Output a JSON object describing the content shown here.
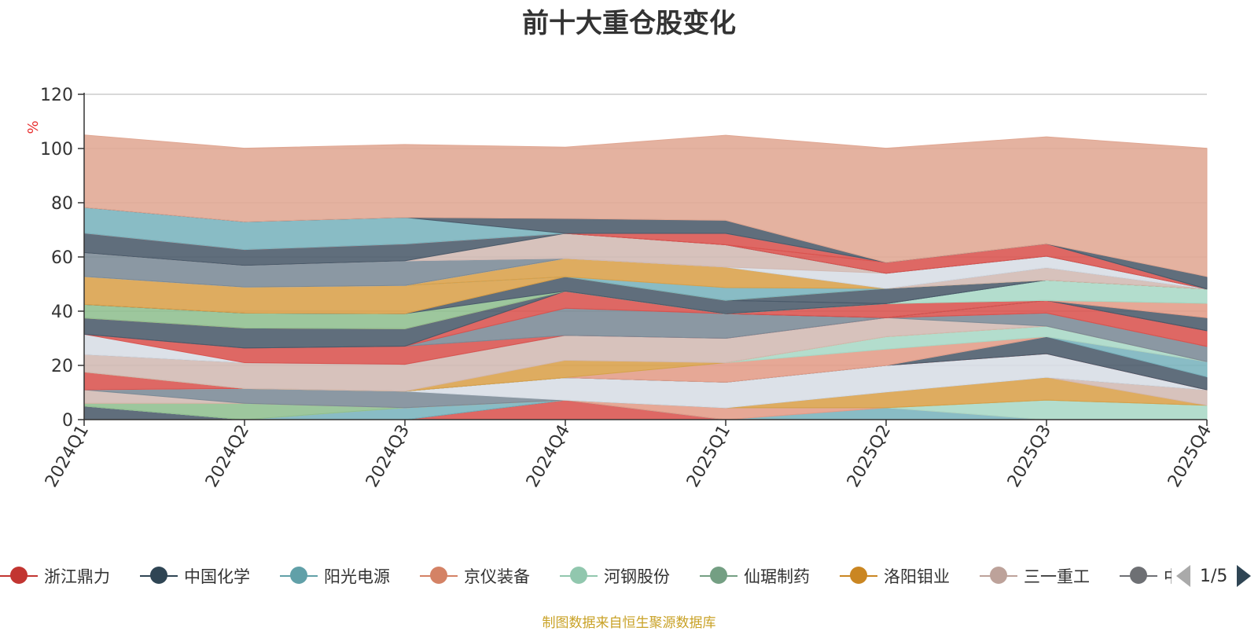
{
  "chart_data": {
    "type": "area",
    "stacked": true,
    "title": "前十大重仓股变化",
    "ylabel": "%",
    "ylim": [
      0,
      120
    ],
    "yticks": [
      0,
      20,
      40,
      60,
      80,
      100,
      120
    ],
    "categories": [
      "2024Q1",
      "2024Q2",
      "2024Q3",
      "2024Q4",
      "2025Q1",
      "2025Q2",
      "2025Q3",
      "2025Q4"
    ],
    "series": [
      {
        "values": [
          0,
          0,
          0,
          7.2,
          0,
          0,
          0,
          0
        ],
        "color": "#d9534f"
      },
      {
        "values": [
          5.0,
          0,
          0,
          0,
          0,
          0,
          0,
          0
        ],
        "color": "#4a5a6a"
      },
      {
        "values": [
          0,
          0,
          4.4,
          0,
          0,
          4.4,
          0,
          0
        ],
        "color": "#79b3bd"
      },
      {
        "values": [
          0,
          0,
          0,
          0,
          4.4,
          0,
          0,
          0
        ],
        "color": "#e39c88"
      },
      {
        "values": [
          0,
          0,
          0,
          0,
          0,
          0,
          7.2,
          5.3
        ],
        "color": "#a8d8c6"
      },
      {
        "values": [
          1.0,
          6.0,
          0,
          0,
          0,
          0,
          0,
          0
        ],
        "color": "#8fbf8f"
      },
      {
        "values": [
          0,
          0,
          0,
          0,
          0,
          5.8,
          8.4,
          0
        ],
        "color": "#d9a04a"
      },
      {
        "values": [
          5.0,
          0,
          0,
          0,
          0,
          0,
          0,
          5.7
        ],
        "color": "#d2b9b3"
      },
      {
        "values": [
          0,
          5.5,
          6.1,
          0,
          0,
          0,
          0,
          0
        ],
        "color": "#7b8a96"
      },
      {
        "values": [
          0,
          0,
          0,
          8.3,
          9.4,
          9.8,
          8.7,
          0
        ],
        "color": "#d7dde5"
      },
      {
        "values": [
          6.6,
          0,
          0,
          0,
          0,
          0,
          0,
          0
        ],
        "color": "#d9534f"
      },
      {
        "values": [
          0,
          0,
          0,
          0,
          0,
          0,
          6.3,
          4.8
        ],
        "color": "#4a5a6a"
      },
      {
        "values": [
          0,
          0,
          0,
          0,
          0,
          0,
          0,
          5.6
        ],
        "color": "#79b3bd"
      },
      {
        "values": [
          0,
          0,
          0,
          0,
          7.2,
          6.0,
          0,
          0
        ],
        "color": "#e39c88"
      },
      {
        "values": [
          0,
          0,
          0,
          0,
          0,
          4.6,
          3.9,
          0
        ],
        "color": "#a8d8c6"
      },
      {
        "values": [
          0,
          0,
          0,
          6.4,
          0,
          0,
          0,
          0
        ],
        "color": "#d9a04a"
      },
      {
        "values": [
          6.5,
          9.5,
          9.9,
          9.2,
          9.0,
          7.0,
          0,
          0
        ],
        "color": "#d2b9b3"
      },
      {
        "values": [
          0,
          0,
          0,
          0,
          0,
          0,
          4.8,
          5.6
        ],
        "color": "#7b8a96"
      },
      {
        "values": [
          7.4,
          0,
          0,
          0,
          0,
          0,
          0,
          0
        ],
        "color": "#d7dde5"
      },
      {
        "values": [
          0,
          5.4,
          6.7,
          0,
          0,
          0,
          0,
          0
        ],
        "color": "#d9534f"
      },
      {
        "values": [
          0,
          0,
          0,
          10.0,
          9.1,
          0,
          0,
          0
        ],
        "color": "#7b8a96"
      },
      {
        "values": [
          0,
          0,
          0,
          6.3,
          0,
          0,
          4.7,
          5.8
        ],
        "color": "#d9534f"
      },
      {
        "values": [
          6.0,
          7.4,
          6.4,
          0,
          0,
          0,
          0,
          0
        ],
        "color": "#4a5a6a"
      },
      {
        "values": [
          0,
          0,
          0,
          0,
          0,
          5.2,
          0,
          0
        ],
        "color": "#d9534f"
      },
      {
        "values": [
          0,
          0,
          0,
          0,
          0,
          0,
          0,
          4.8
        ],
        "color": "#4a5a6a"
      },
      {
        "values": [
          0,
          0,
          0,
          0,
          0,
          0,
          0,
          5.3
        ],
        "color": "#e39c88"
      },
      {
        "values": [
          5.0,
          5.5,
          5.6,
          0,
          0,
          0,
          0,
          0
        ],
        "color": "#8fbf8f"
      },
      {
        "values": [
          0,
          0,
          0,
          0,
          0,
          0,
          7.5,
          5.3
        ],
        "color": "#a8d8c6"
      },
      {
        "values": [
          0,
          0,
          0,
          5.3,
          4.9,
          0,
          0,
          0
        ],
        "color": "#4a5a6a"
      },
      {
        "values": [
          0,
          0,
          0,
          0,
          0,
          5.6,
          0,
          0
        ],
        "color": "#4a5a6a"
      },
      {
        "values": [
          10.3,
          9.6,
          10.4,
          0,
          0,
          0,
          0,
          0
        ],
        "color": "#d9a04a"
      },
      {
        "values": [
          0,
          0,
          0,
          0,
          4.7,
          0,
          0,
          0
        ],
        "color": "#79b3bd"
      },
      {
        "values": [
          0,
          0,
          0,
          6.8,
          7.6,
          0,
          0,
          0
        ],
        "color": "#d9a04a"
      },
      {
        "values": [
          0,
          0,
          0,
          0,
          0,
          0,
          4.6,
          0
        ],
        "color": "#d2b9b3"
      },
      {
        "values": [
          0,
          0,
          0,
          0,
          0,
          0,
          0,
          0
        ],
        "color": "#d7dde5"
      },
      {
        "values": [
          8.8,
          8.0,
          9.1,
          0,
          0,
          0,
          0,
          0
        ],
        "color": "#7b8a96"
      },
      {
        "values": [
          0,
          0,
          0,
          0,
          0,
          5.6,
          4.2,
          0
        ],
        "color": "#d7dde5"
      },
      {
        "values": [
          0,
          0,
          0,
          9.2,
          8.2,
          0,
          0,
          0
        ],
        "color": "#d2b9b3"
      },
      {
        "values": [
          7.2,
          5.8,
          6.2,
          0,
          0,
          0,
          0,
          0
        ],
        "color": "#4a5a6a"
      },
      {
        "values": [
          0,
          0,
          0,
          0,
          0,
          4.0,
          4.6,
          0
        ],
        "color": "#d9534f"
      },
      {
        "values": [
          0,
          0,
          0,
          0,
          4.2,
          0,
          0,
          0
        ],
        "color": "#d9534f"
      },
      {
        "values": [
          9.5,
          10.3,
          9.8,
          0,
          0,
          0,
          0,
          0
        ],
        "color": "#79b3bd"
      },
      {
        "values": [
          0,
          0,
          0,
          5.5,
          4.8,
          0,
          0,
          0
        ],
        "color": "#4a5a6a"
      },
      {
        "values": [
          0,
          0,
          0,
          0,
          0,
          0,
          0,
          4.6
        ],
        "color": "#4a5a6a"
      },
      {
        "values": [
          26.7,
          27.1,
          26.9,
          26.3,
          31.4,
          42.1,
          39.4,
          47.3
        ],
        "color": "#e0a793"
      }
    ]
  },
  "legend": {
    "items": [
      {
        "label": "浙江鼎力",
        "color": "#c23531"
      },
      {
        "label": "中国化学",
        "color": "#2f4554"
      },
      {
        "label": "阳光电源",
        "color": "#61a0a8"
      },
      {
        "label": "京仪装备",
        "color": "#d48265"
      },
      {
        "label": "河钢股份",
        "color": "#91c7ae"
      },
      {
        "label": "仙琚制药",
        "color": "#749f83"
      },
      {
        "label": "洛阳钼业",
        "color": "#ca8622"
      },
      {
        "label": "三一重工",
        "color": "#bda29a"
      },
      {
        "label": "中",
        "color": "#6e7074"
      }
    ],
    "page_label": "1/5"
  },
  "source_note": "制图数据来自恒生聚源数据库"
}
